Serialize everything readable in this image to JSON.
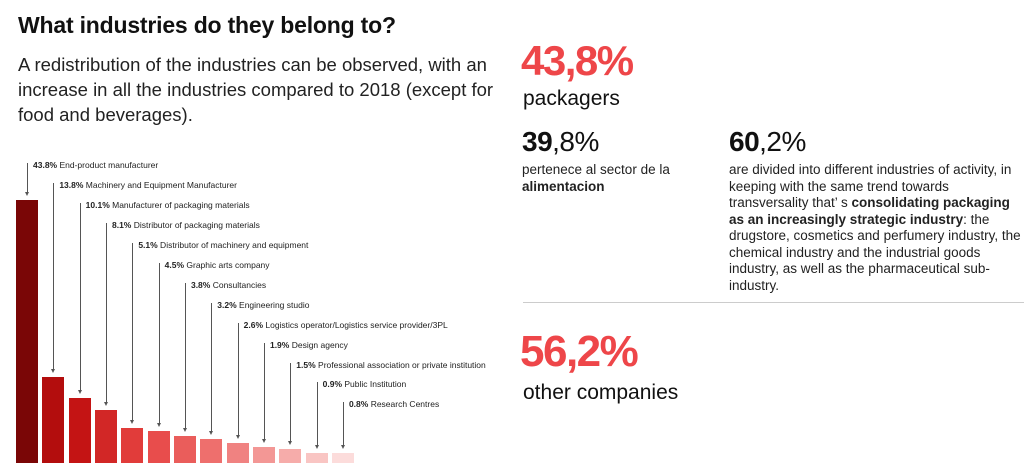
{
  "header": {
    "title": "What industries do they belong to?",
    "intro": "A redistribution of the industries can be observed, with an\nincrease in all the industries compared to 2018 (except for\nfood and beverages)."
  },
  "chart_data": {
    "type": "bar",
    "title": "What industries do they belong to?",
    "xlabel": "",
    "ylabel": "",
    "ylim": [
      0,
      45
    ],
    "grid": false,
    "legend": false,
    "categories": [
      "End-product manufacturer",
      "Machinery and Equipment Manufacturer",
      "Manufacturer of packaging materials",
      "Distributor of packaging materials",
      "Distributor of machinery and equipment",
      "Graphic arts company",
      "Consultancies",
      "Engineering studio",
      "Logistics operator/Logistics service provider/3PL",
      "Design agency",
      "Professional association or private institution",
      "Public Institution",
      "Research Centres"
    ],
    "values": [
      43.8,
      13.8,
      10.1,
      8.1,
      5.1,
      4.5,
      3.8,
      3.2,
      2.6,
      1.9,
      1.5,
      0.9,
      0.8
    ],
    "value_labels": [
      "43.8%",
      "13.8%",
      "10.1%",
      "8.1%",
      "5.1%",
      "4.5%",
      "3.8%",
      "3.2%",
      "2.6%",
      "1.9%",
      "1.5%",
      "0.9%",
      "0.8%"
    ],
    "bar_colors": [
      "#7a0606",
      "#b30d0d",
      "#c41414",
      "#d22726",
      "#e13c3a",
      "#e84d4c",
      "#ea5d5b",
      "#ee6f6d",
      "#f08281",
      "#f39795",
      "#f6acaa",
      "#f9c5c3",
      "#fcdcdb"
    ]
  },
  "stats": {
    "packagers": {
      "value": "43,8%",
      "label": "packagers"
    },
    "food": {
      "value_bold": "39",
      "value_rest": ",8%",
      "line1": "pertenece al sector de la",
      "line2_bold": "alimentacion"
    },
    "industries": {
      "value_bold": "60",
      "value_rest": ",2%",
      "text_before": "are divided into different industries of activity, in keeping with the same trend towards transversality that’ s ",
      "text_bold": "consolidating packaging as an increasingly strategic industry",
      "text_after": ": the drugstore, cosmetics and perfumery industry, the chemical industry and the industrial goods industry, as well as the pharmaceutical sub-industry."
    },
    "other": {
      "value": "56,2%",
      "label": "other companies"
    }
  },
  "colors": {
    "accent_red": "#ee4649",
    "divider": "#cccccc",
    "arrow": "#555555"
  }
}
